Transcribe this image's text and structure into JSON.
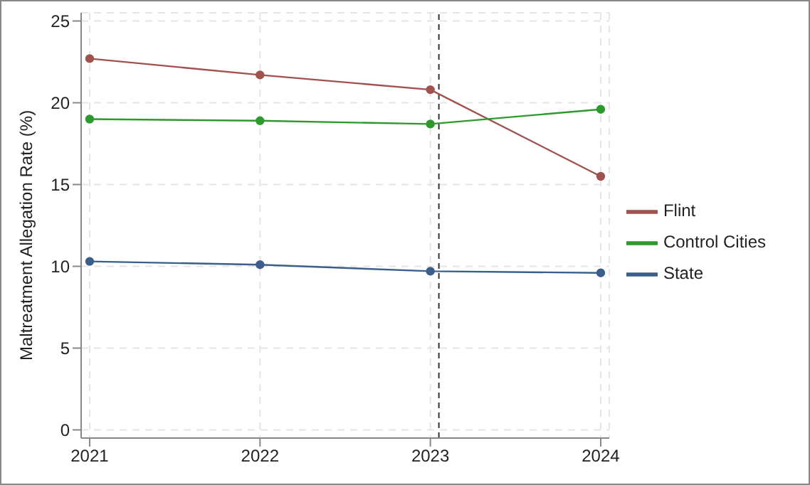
{
  "chart_data": {
    "type": "line",
    "ylabel": "Maltreatment Allegation Rate (%)",
    "x": [
      2021,
      2022,
      2023,
      2024
    ],
    "series": [
      {
        "name": "Flint",
        "color": "#a0524f",
        "values": [
          22.7,
          21.7,
          20.8,
          15.5
        ]
      },
      {
        "name": "Control Cities",
        "color": "#2e9a2e",
        "values": [
          19.0,
          18.9,
          18.7,
          19.6
        ]
      },
      {
        "name": "State",
        "color": "#3a5f8a",
        "values": [
          10.3,
          10.1,
          9.7,
          9.6
        ]
      }
    ],
    "xlim": [
      2020.95,
      2024.05
    ],
    "xticks": [
      2021,
      2022,
      2023,
      2024
    ],
    "ylim": [
      -0.5,
      25.5
    ],
    "yticks": [
      0,
      5,
      10,
      15,
      20,
      25
    ],
    "ref_lines": [
      {
        "axis": "x",
        "value": 2023.05,
        "color": "#333333",
        "line_style": "dashed"
      }
    ],
    "grid": true,
    "legend": "right",
    "marker": "circle",
    "line_style": "solid"
  }
}
